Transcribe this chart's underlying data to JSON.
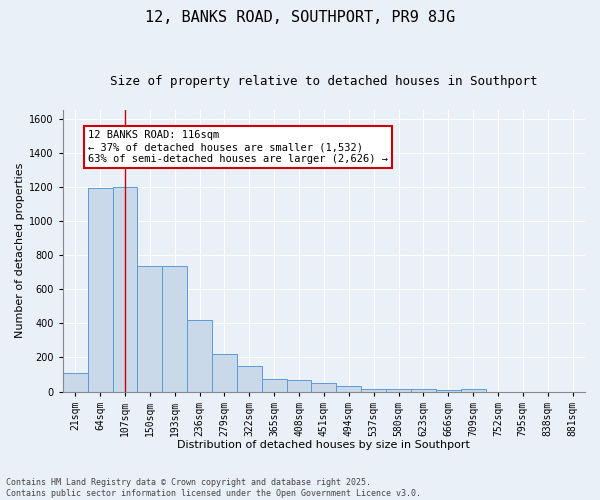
{
  "title": "12, BANKS ROAD, SOUTHPORT, PR9 8JG",
  "subtitle": "Size of property relative to detached houses in Southport",
  "xlabel": "Distribution of detached houses by size in Southport",
  "ylabel": "Number of detached properties",
  "categories": [
    "21sqm",
    "64sqm",
    "107sqm",
    "150sqm",
    "193sqm",
    "236sqm",
    "279sqm",
    "322sqm",
    "365sqm",
    "408sqm",
    "451sqm",
    "494sqm",
    "537sqm",
    "580sqm",
    "623sqm",
    "666sqm",
    "709sqm",
    "752sqm",
    "795sqm",
    "838sqm",
    "881sqm"
  ],
  "values": [
    110,
    1190,
    1200,
    735,
    735,
    420,
    222,
    148,
    75,
    70,
    50,
    30,
    17,
    13,
    13,
    12,
    13,
    0,
    0,
    0,
    0
  ],
  "bar_color": "#c9d9ea",
  "bar_edge_color": "#5b9bd5",
  "background_color": "#eaf0f8",
  "grid_color": "#ffffff",
  "vline_x_index": 2,
  "vline_color": "#cc0000",
  "annotation_text": "12 BANKS ROAD: 116sqm\n← 37% of detached houses are smaller (1,532)\n63% of semi-detached houses are larger (2,626) →",
  "annotation_box_color": "#ffffff",
  "annotation_box_edge": "#cc0000",
  "ylim": [
    0,
    1650
  ],
  "yticks": [
    0,
    200,
    400,
    600,
    800,
    1000,
    1200,
    1400,
    1600
  ],
  "footer": "Contains HM Land Registry data © Crown copyright and database right 2025.\nContains public sector information licensed under the Open Government Licence v3.0.",
  "title_fontsize": 11,
  "subtitle_fontsize": 9,
  "axis_label_fontsize": 8,
  "tick_fontsize": 7,
  "annotation_fontsize": 7.5,
  "footer_fontsize": 6
}
